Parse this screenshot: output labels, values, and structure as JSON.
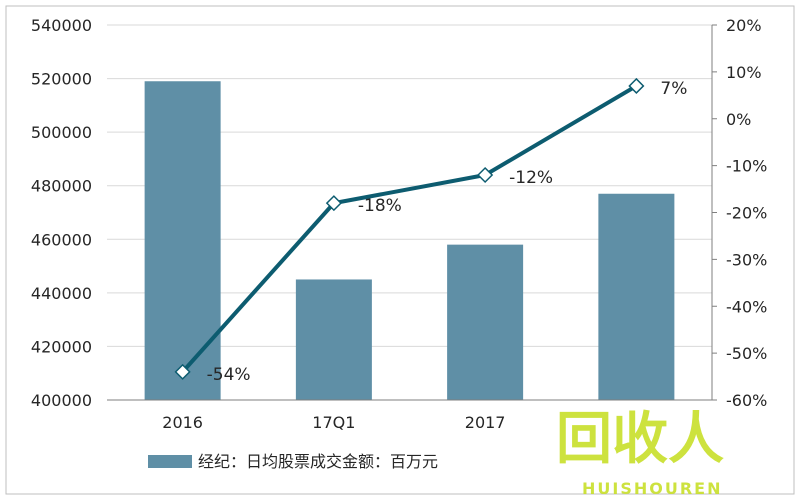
{
  "chart_data": {
    "type": "bar",
    "categories": [
      "2016",
      "17Q1",
      "2017",
      ""
    ],
    "series": [
      {
        "name": "经纪：日均股票成交金额：百万元",
        "type": "bar",
        "axis": "left",
        "values": [
          519000,
          445000,
          458000,
          477000
        ]
      },
      {
        "type": "line",
        "axis": "right",
        "values": [
          -54,
          -18,
          -12,
          7
        ],
        "labels": [
          "-54%",
          "-18%",
          "-12%",
          "7%"
        ]
      }
    ],
    "y_left": {
      "ylim": [
        400000,
        540000
      ],
      "ticks": [
        "400000",
        "420000",
        "440000",
        "460000",
        "480000",
        "500000",
        "520000",
        "540000"
      ]
    },
    "y_right": {
      "ylim": [
        -60,
        20
      ],
      "ticks": [
        "-60%",
        "-50%",
        "-40%",
        "-30%",
        "-20%",
        "-10%",
        "0%",
        "10%",
        "20%"
      ]
    },
    "grid": true,
    "legend_position": "bottom-left"
  },
  "colors": {
    "bar": "#5f8fa6",
    "line": "#0d5c70",
    "grid": "#d9d9d9",
    "axis": "#7f7f7f",
    "text": "#262626",
    "watermark": "#c8df2a"
  },
  "watermark": {
    "text": "回收人",
    "subtext": "HUISHOUREN"
  }
}
